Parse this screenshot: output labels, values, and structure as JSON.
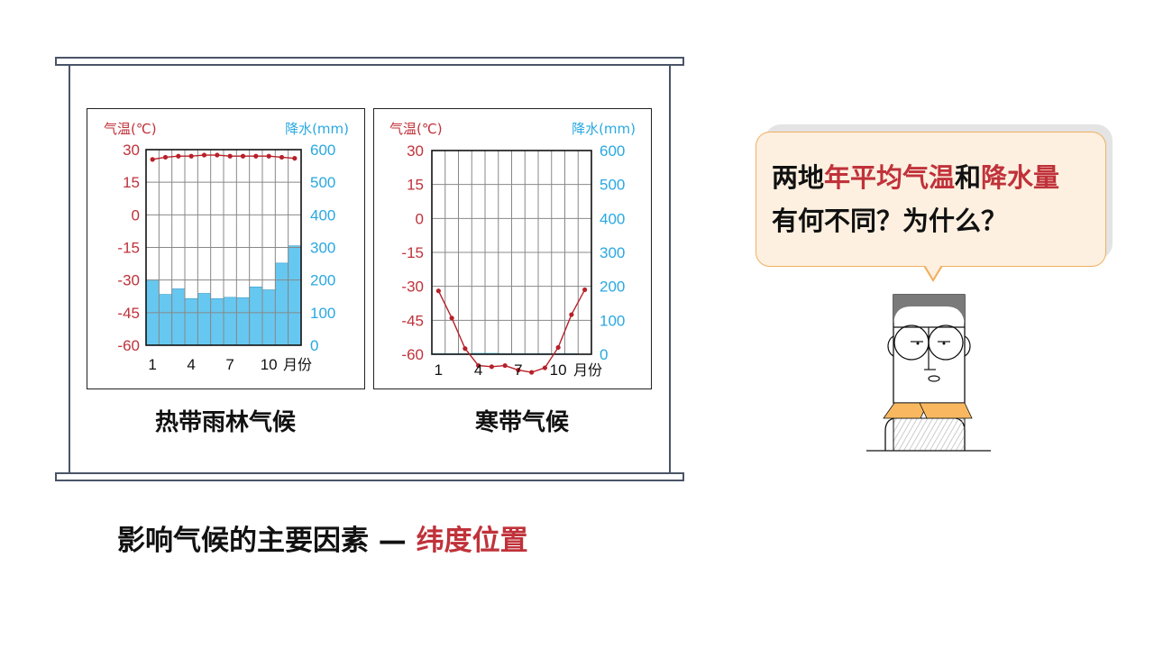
{
  "slide": {
    "climate_labels": [
      "热带雨林气候",
      "寒带气候"
    ],
    "bottom_title": {
      "prefix": "影响气候的主要因素 — ",
      "highlight": "纬度位置"
    },
    "bubble": {
      "line1": [
        {
          "text": "两地",
          "hl": false
        },
        {
          "text": "年平均气温",
          "hl": true
        },
        {
          "text": "和",
          "hl": false
        },
        {
          "text": "降水量",
          "hl": true
        }
      ],
      "line2": "有何不同？为什么？"
    },
    "colors": {
      "temperature": "#c0323a",
      "precipitation": "#29a8e0",
      "bar_fill": "#66c8f0",
      "frame": "#4a5468",
      "bubble_fill": "#fdf0e0",
      "bubble_border": "#f0b060",
      "collar": "#f9b860"
    }
  },
  "chart_data": [
    {
      "type": "bar+line",
      "name_label": "热带雨林气候",
      "left_axis_label": "气温(℃)",
      "right_axis_label": "降水(mm)",
      "x_label": "月份",
      "x_ticks": [
        "1",
        "4",
        "7",
        "10"
      ],
      "months": [
        1,
        2,
        3,
        4,
        5,
        6,
        7,
        8,
        9,
        10,
        11,
        12
      ],
      "temp_ticks": [
        "30",
        "15",
        "0",
        "-15",
        "-30",
        "-45",
        "-60"
      ],
      "precip_ticks": [
        "600",
        "500",
        "400",
        "300",
        "200",
        "100",
        "0"
      ],
      "temp_range": [
        -60,
        30
      ],
      "precip_range": [
        0,
        600
      ],
      "grid": true,
      "temperature": [
        25.5,
        26.5,
        27,
        27,
        27.5,
        27.5,
        27,
        27,
        27,
        27,
        26.5,
        26
      ],
      "precipitation": [
        200,
        156,
        173,
        143,
        159,
        143,
        147,
        146,
        179,
        170,
        252,
        305
      ]
    },
    {
      "type": "bar+line",
      "name_label": "寒带气候",
      "left_axis_label": "气温(℃)",
      "right_axis_label": "降水(mm)",
      "x_label": "月份",
      "x_ticks": [
        "1",
        "4",
        "7",
        "10"
      ],
      "months": [
        1,
        2,
        3,
        4,
        5,
        6,
        7,
        8,
        9,
        10,
        11,
        12
      ],
      "temp_ticks": [
        "30",
        "15",
        "0",
        "-15",
        "-30",
        "-45",
        "-60"
      ],
      "precip_ticks": [
        "600",
        "500",
        "400",
        "300",
        "200",
        "100",
        "0"
      ],
      "temp_range": [
        -60,
        30
      ],
      "precip_range": [
        0,
        600
      ],
      "grid": true,
      "temperature": [
        -32,
        -44,
        -57.5,
        -65,
        -65.5,
        -65,
        -67,
        -68,
        -66,
        -57,
        -42.5,
        -31.5
      ],
      "precipitation": [
        3,
        3,
        3,
        4,
        4,
        3,
        3,
        3,
        3,
        3,
        3,
        0
      ]
    }
  ]
}
